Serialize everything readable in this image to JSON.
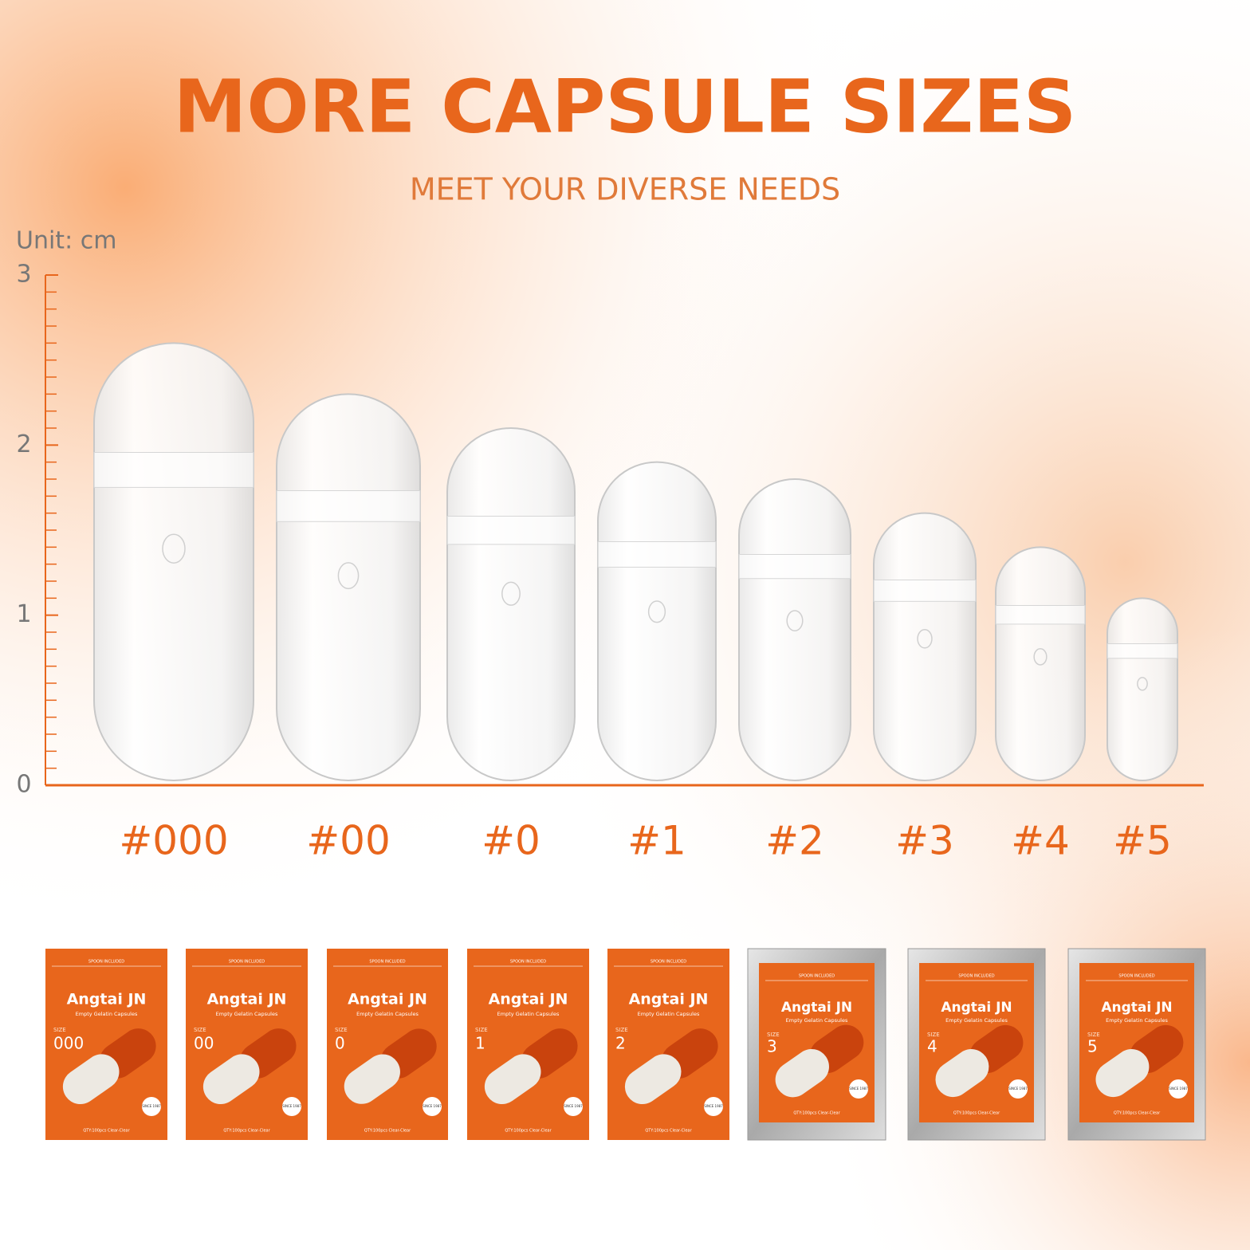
{
  "chart_data": {
    "type": "bar",
    "title": "MORE CAPSULE SIZES",
    "subtitle": "MEET YOUR DIVERSE NEEDS",
    "y_label": "Unit: cm",
    "categories": [
      "#000",
      "#00",
      "#0",
      "#1",
      "#2",
      "#3",
      "#4",
      "#5"
    ],
    "values": [
      2.6,
      2.3,
      2.1,
      1.9,
      1.8,
      1.6,
      1.4,
      1.1
    ],
    "color": "#ffffff",
    "accent_color": "#e8661c",
    "ylim": [
      0,
      3
    ],
    "yticks": [
      0,
      1,
      2,
      3
    ],
    "minor_yticks": [
      0.1,
      0.2,
      0.3,
      0.4,
      0.5,
      0.6,
      0.7,
      0.8,
      0.9,
      1.1,
      1.2,
      1.3,
      1.4,
      1.5,
      1.6,
      1.7,
      1.8,
      1.9,
      2.1,
      2.2,
      2.3,
      2.4,
      2.5,
      2.6,
      2.7,
      2.8,
      2.9
    ]
  },
  "packages": {
    "spoon": "SPOON INCLUDED",
    "brand": "Angtai JN",
    "product": "Empty Gelatin Capsules",
    "size_label": "SIZE",
    "since": "SINCE 1987",
    "qty": "QTY:100pcs Clear-Clear",
    "items": [
      {
        "size": "000",
        "bag_color": "#e8661c"
      },
      {
        "size": "00",
        "bag_color": "#e8661c"
      },
      {
        "size": "0",
        "bag_color": "#e8661c"
      },
      {
        "size": "1",
        "bag_color": "#e8661c"
      },
      {
        "size": "2",
        "bag_color": "#e8661c"
      },
      {
        "size": "3",
        "bag_color": "#c9c9c9"
      },
      {
        "size": "4",
        "bag_color": "#c9c9c9"
      },
      {
        "size": "5",
        "bag_color": "#c9c9c9"
      }
    ]
  }
}
